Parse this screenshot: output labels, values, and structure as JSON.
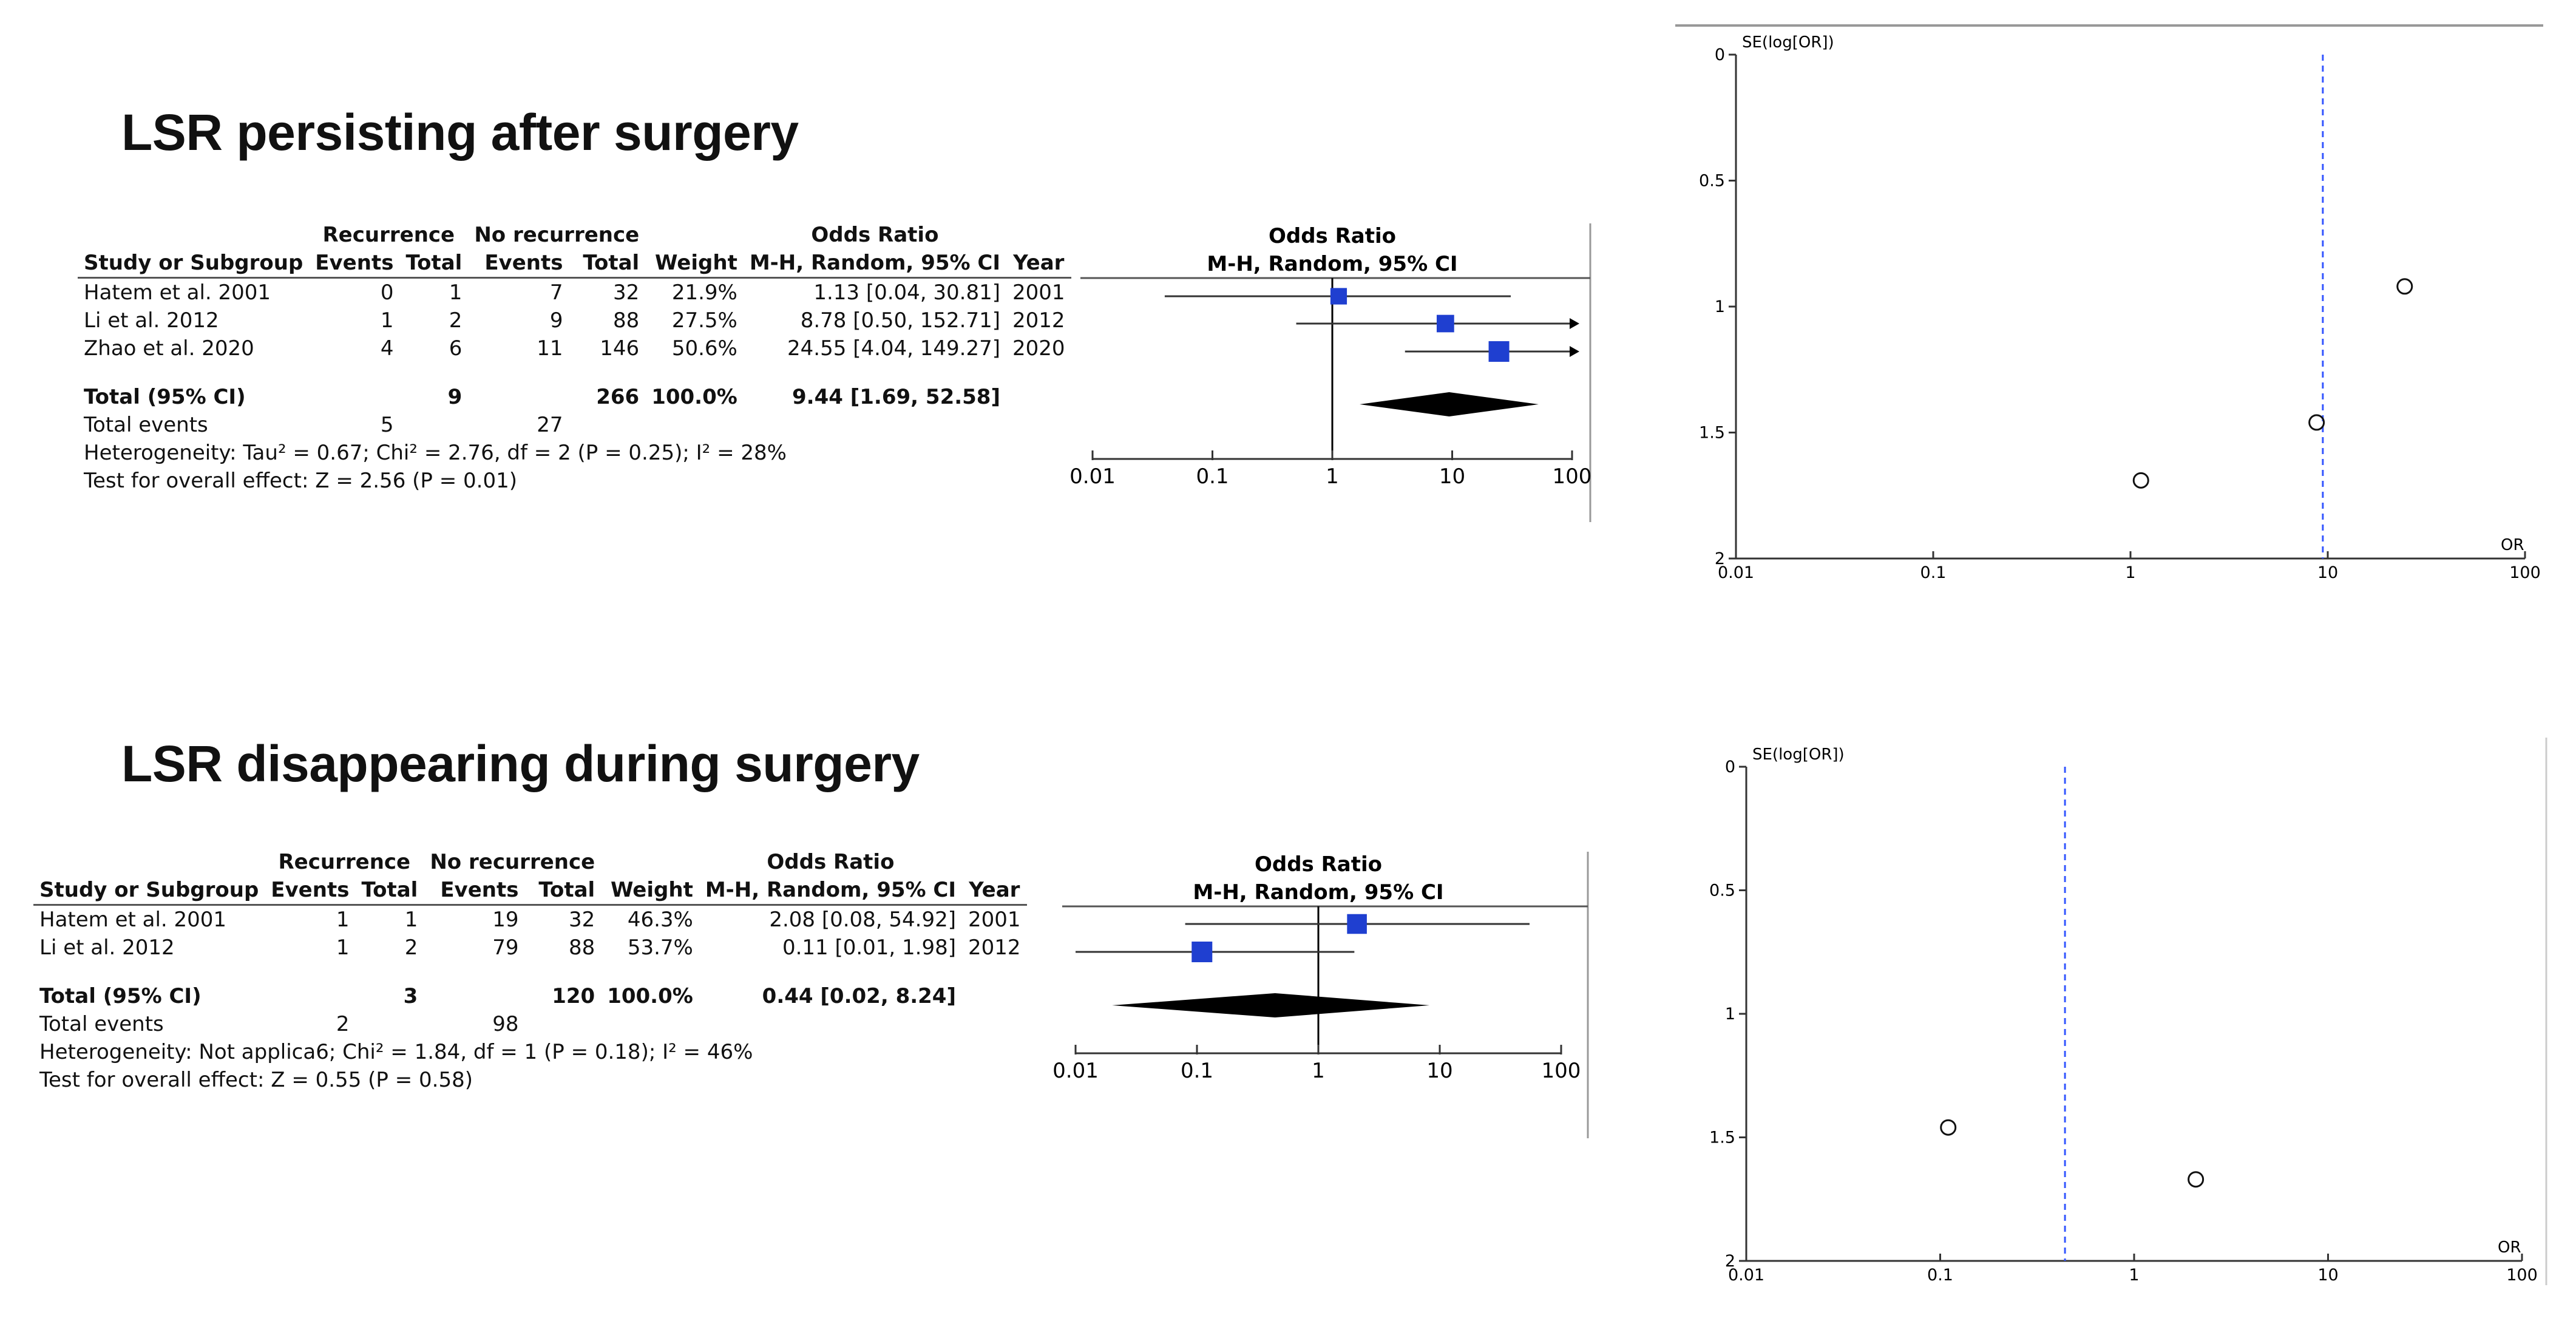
{
  "chart_data": [
    {
      "type": "forest",
      "title": "LSR persisting after surgery",
      "headers": {
        "study": "Study or Subgroup",
        "group1": "Recurrence",
        "group2": "No recurrence",
        "events": "Events",
        "total": "Total",
        "weight": "Weight",
        "effect_title": "Odds Ratio",
        "effect_method": "M-H, Random, 95% CI",
        "year": "Year"
      },
      "studies": [
        {
          "name": "Hatem et al. 2001",
          "e1": "0",
          "n1": "1",
          "e2": "7",
          "n2": "32",
          "weight": "21.9%",
          "ci_text": "1.13 [0.04, 30.81]",
          "year": "2001",
          "or": 1.13,
          "lo": 0.04,
          "hi": 30.81,
          "w": 21.9
        },
        {
          "name": "Li et al. 2012",
          "e1": "1",
          "n1": "2",
          "e2": "9",
          "n2": "88",
          "weight": "27.5%",
          "ci_text": "8.78 [0.50, 152.71]",
          "year": "2012",
          "or": 8.78,
          "lo": 0.5,
          "hi": 152.71,
          "w": 27.5
        },
        {
          "name": "Zhao et al. 2020",
          "e1": "4",
          "n1": "6",
          "e2": "11",
          "n2": "146",
          "weight": "50.6%",
          "ci_text": "24.55 [4.04, 149.27]",
          "year": "2020",
          "or": 24.55,
          "lo": 4.04,
          "hi": 149.27,
          "w": 50.6
        }
      ],
      "total": {
        "label": "Total (95% CI)",
        "n1": "9",
        "n2": "266",
        "weight": "100.0%",
        "ci_text": "9.44 [1.69, 52.58]",
        "or": 9.44,
        "lo": 1.69,
        "hi": 52.58
      },
      "total_events": {
        "label": "Total events",
        "e1": "5",
        "e2": "27"
      },
      "heterogeneity": "Heterogeneity: Tau² = 0.67; Chi² = 2.76, df = 2 (P = 0.25); I² = 28%",
      "overall_effect": "Test for overall effect: Z = 2.56 (P = 0.01)",
      "x_ticks": [
        "0.01",
        "0.1",
        "1",
        "10",
        "100"
      ],
      "x_scale": "log",
      "xlim": [
        0.01,
        100
      ]
    },
    {
      "type": "forest",
      "title": "LSR disappearing during surgery",
      "headers": {
        "study": "Study or Subgroup",
        "group1": "Recurrence",
        "group2": "No recurrence",
        "events": "Events",
        "total": "Total",
        "weight": "Weight",
        "effect_title": "Odds Ratio",
        "effect_method": "M-H, Random, 95% CI",
        "year": "Year"
      },
      "studies": [
        {
          "name": "Hatem et al. 2001",
          "e1": "1",
          "n1": "1",
          "e2": "19",
          "n2": "32",
          "weight": "46.3%",
          "ci_text": "2.08 [0.08, 54.92]",
          "year": "2001",
          "or": 2.08,
          "lo": 0.08,
          "hi": 54.92,
          "w": 46.3
        },
        {
          "name": "Li et al. 2012",
          "e1": "1",
          "n1": "2",
          "e2": "79",
          "n2": "88",
          "weight": "53.7%",
          "ci_text": "0.11 [0.01, 1.98]",
          "year": "2012",
          "or": 0.11,
          "lo": 0.01,
          "hi": 1.98,
          "w": 53.7
        }
      ],
      "total": {
        "label": "Total (95% CI)",
        "n1": "3",
        "n2": "120",
        "weight": "100.0%",
        "ci_text": "0.44 [0.02, 8.24]",
        "or": 0.44,
        "lo": 0.02,
        "hi": 8.24
      },
      "total_events": {
        "label": "Total events",
        "e1": "2",
        "e2": "98"
      },
      "heterogeneity": "Heterogeneity: Not applica6; Chi² = 1.84, df = 1 (P = 0.18); I² = 46%",
      "overall_effect": "Test for overall effect: Z = 0.55 (P = 0.58)",
      "x_ticks": [
        "0.01",
        "0.1",
        "1",
        "10",
        "100"
      ],
      "x_scale": "log",
      "xlim": [
        0.01,
        100
      ]
    },
    {
      "type": "scatter",
      "subtype": "funnel",
      "ylabel": "SE(log[OR])",
      "xlabel": "OR",
      "x_scale": "log",
      "xlim": [
        0.01,
        100
      ],
      "ylim": [
        0,
        2
      ],
      "y_inverted": true,
      "x_ticks": [
        "0.01",
        "0.1",
        "1",
        "10",
        "100"
      ],
      "y_ticks": [
        "0",
        "0.5",
        "1",
        "1.5",
        "2"
      ],
      "points": [
        {
          "or": 24.55,
          "se": 0.92
        },
        {
          "or": 8.78,
          "se": 1.46
        },
        {
          "or": 1.13,
          "se": 1.69
        }
      ],
      "summary_or": 9.44
    },
    {
      "type": "scatter",
      "subtype": "funnel",
      "ylabel": "SE(log[OR])",
      "xlabel": "OR",
      "x_scale": "log",
      "xlim": [
        0.01,
        100
      ],
      "ylim": [
        0,
        2
      ],
      "y_inverted": true,
      "x_ticks": [
        "0.01",
        "0.1",
        "1",
        "10",
        "100"
      ],
      "y_ticks": [
        "0",
        "0.5",
        "1",
        "1.5",
        "2"
      ],
      "points": [
        {
          "or": 0.11,
          "se": 1.46
        },
        {
          "or": 2.08,
          "se": 1.67
        }
      ],
      "summary_or": 0.44
    }
  ],
  "colors": {
    "square": "#1f3fd0",
    "diamond": "#000000",
    "axis": "#333333",
    "funnel_line": "#3355ff",
    "divider": "#999999"
  }
}
